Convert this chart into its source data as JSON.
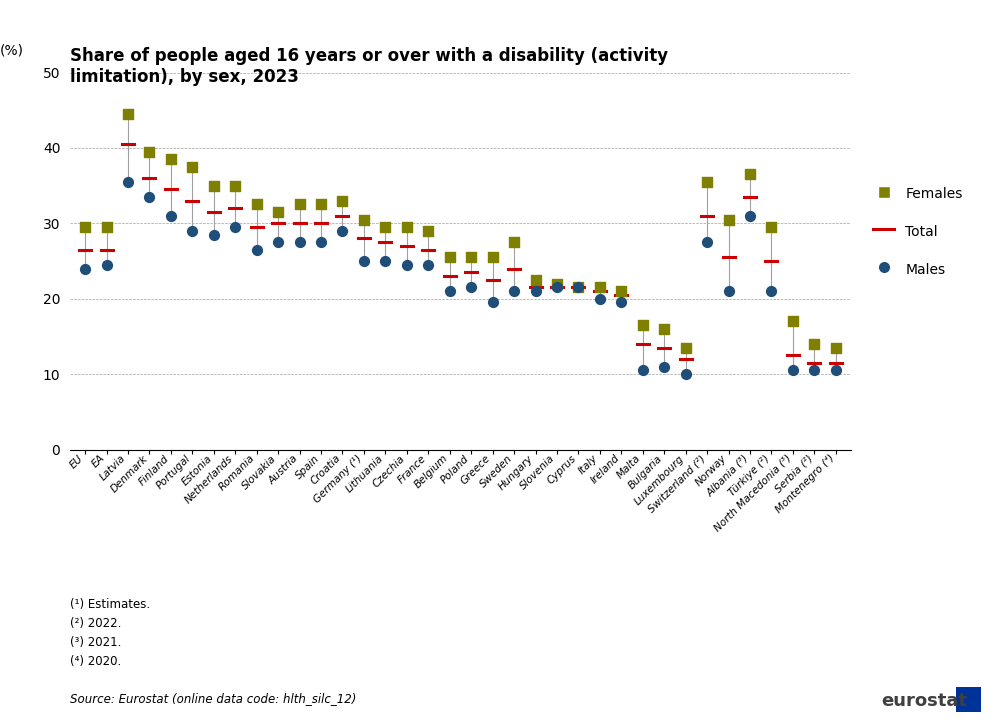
{
  "title": "Share of people aged 16 years or over with a disability (activity\nlimitation), by sex, 2023",
  "ylabel": "(%)",
  "ylim": [
    0,
    50
  ],
  "yticks": [
    0,
    10,
    20,
    30,
    40,
    50
  ],
  "categories": [
    "EU",
    "EA",
    "Latvia",
    "Denmark",
    "Finland",
    "Portugal",
    "Estonia",
    "Netherlands",
    "Romania",
    "Slovakia",
    "Austria",
    "Spain",
    "Croatia",
    "Germany (¹)",
    "Lithuania",
    "Czechia",
    "France",
    "Belgium",
    "Poland",
    "Greece",
    "Sweden",
    "Hungary",
    "Slovenia",
    "Cyprus",
    "Italy",
    "Ireland",
    "Malta",
    "Bulgaria",
    "Luxembourg",
    "Switzerland (²)",
    "Norway",
    "Albania (³)",
    "Türkiye (²)",
    "North Macedonia (³)",
    "Serbia (²)",
    "Montenegro (⁴)"
  ],
  "females": [
    29.5,
    29.5,
    44.5,
    39.5,
    38.5,
    37.5,
    35.0,
    35.0,
    32.5,
    31.5,
    32.5,
    32.5,
    33.0,
    30.5,
    29.5,
    29.5,
    29.0,
    25.5,
    25.5,
    25.5,
    27.5,
    22.5,
    22.0,
    21.5,
    21.5,
    21.0,
    16.5,
    16.0,
    13.5,
    35.5,
    30.5,
    36.5,
    29.5,
    17.0,
    14.0,
    13.5
  ],
  "males": [
    24.0,
    24.5,
    35.5,
    33.5,
    31.0,
    29.0,
    28.5,
    29.5,
    26.5,
    27.5,
    27.5,
    27.5,
    29.0,
    25.0,
    25.0,
    24.5,
    24.5,
    21.0,
    21.5,
    19.5,
    21.0,
    21.0,
    21.5,
    21.5,
    20.0,
    19.5,
    10.5,
    11.0,
    10.0,
    27.5,
    21.0,
    31.0,
    21.0,
    10.5,
    10.5,
    10.5
  ],
  "total": [
    26.5,
    26.5,
    40.5,
    36.0,
    34.5,
    33.0,
    31.5,
    32.0,
    29.5,
    30.0,
    30.0,
    30.0,
    31.0,
    28.0,
    27.5,
    27.0,
    26.5,
    23.0,
    23.5,
    22.5,
    24.0,
    21.5,
    21.5,
    21.5,
    21.0,
    20.5,
    14.0,
    13.5,
    12.0,
    31.0,
    25.5,
    33.5,
    25.0,
    12.5,
    11.5,
    11.5
  ],
  "female_color": "#808000",
  "male_color": "#1f4e79",
  "total_color": "#cc0000",
  "connector_color": "#a0a0a0",
  "footnotes": [
    "(¹) Estimates.",
    "(²) 2022.",
    "(³) 2021.",
    "(⁴) 2020."
  ],
  "source": "Source: Eurostat (online data code: hlth_silc_12)"
}
